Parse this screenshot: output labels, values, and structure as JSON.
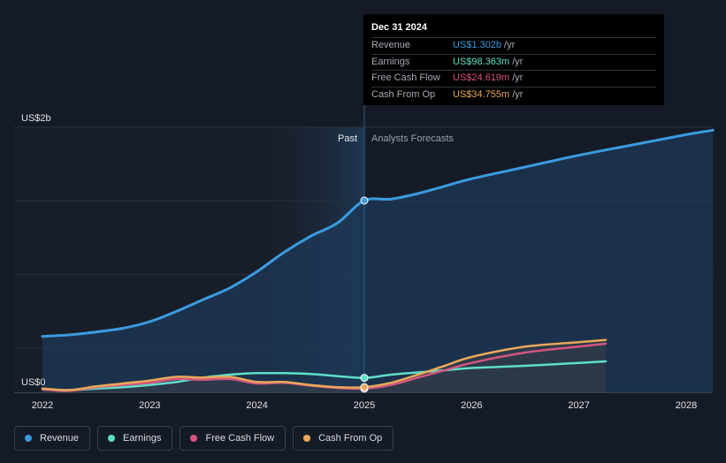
{
  "tooltip": {
    "date": "Dec 31 2024",
    "rows": [
      {
        "label": "Revenue",
        "value": "US$1.302b",
        "unit": "/yr",
        "color": "#3b9be0"
      },
      {
        "label": "Earnings",
        "value": "US$98.363m",
        "unit": "/yr",
        "color": "#5ee0c8"
      },
      {
        "label": "Free Cash Flow",
        "value": "US$24.619m",
        "unit": "/yr",
        "color": "#d4557f"
      },
      {
        "label": "Cash From Op",
        "value": "US$34.755m",
        "unit": "/yr",
        "color": "#e8a85a"
      }
    ]
  },
  "chart_data": {
    "type": "line",
    "title": "",
    "xlabel": "",
    "ylabel": "",
    "y_axis_labels": [
      "US$2b",
      "US$0"
    ],
    "ylim": [
      0,
      1.8
    ],
    "xlim": [
      2021.9,
      2028.25
    ],
    "x_ticks": [
      "2022",
      "2023",
      "2024",
      "2025",
      "2026",
      "2027",
      "2028"
    ],
    "tick_values": [
      2022,
      2023,
      2024,
      2025,
      2026,
      2027,
      2028
    ],
    "divider_x": 2025.0,
    "divider_labels": {
      "past": "Past",
      "forecast": "Analysts Forecasts"
    },
    "series": [
      {
        "name": "Revenue",
        "color": "#3b9be0",
        "points": [
          [
            2022.0,
            0.38
          ],
          [
            2022.25,
            0.39
          ],
          [
            2022.5,
            0.41
          ],
          [
            2022.75,
            0.435
          ],
          [
            2023.0,
            0.48
          ],
          [
            2023.25,
            0.55
          ],
          [
            2023.5,
            0.63
          ],
          [
            2023.75,
            0.71
          ],
          [
            2024.0,
            0.82
          ],
          [
            2024.25,
            0.95
          ],
          [
            2024.5,
            1.06
          ],
          [
            2024.75,
            1.15
          ],
          [
            2025.0,
            1.302
          ],
          [
            2025.25,
            1.312
          ],
          [
            2025.5,
            1.35
          ],
          [
            2025.75,
            1.4
          ],
          [
            2026.0,
            1.45
          ],
          [
            2026.5,
            1.53
          ],
          [
            2027.0,
            1.61
          ],
          [
            2027.5,
            1.68
          ],
          [
            2028.0,
            1.75
          ],
          [
            2028.25,
            1.78
          ]
        ]
      },
      {
        "name": "Earnings",
        "color": "#5ee0c8",
        "points": [
          [
            2022.0,
            0.02
          ],
          [
            2022.25,
            0.015
          ],
          [
            2022.5,
            0.025
          ],
          [
            2022.75,
            0.035
          ],
          [
            2023.0,
            0.05
          ],
          [
            2023.25,
            0.07
          ],
          [
            2023.5,
            0.1
          ],
          [
            2023.75,
            0.12
          ],
          [
            2024.0,
            0.13
          ],
          [
            2024.25,
            0.13
          ],
          [
            2024.5,
            0.125
          ],
          [
            2024.75,
            0.11
          ],
          [
            2025.0,
            0.098
          ],
          [
            2025.25,
            0.12
          ],
          [
            2025.5,
            0.135
          ],
          [
            2025.75,
            0.15
          ],
          [
            2026.0,
            0.165
          ],
          [
            2026.5,
            0.18
          ],
          [
            2027.0,
            0.2
          ],
          [
            2027.25,
            0.21
          ]
        ]
      },
      {
        "name": "Free Cash Flow",
        "color": "#d4557f",
        "points": [
          [
            2022.0,
            0.02
          ],
          [
            2022.25,
            0.01
          ],
          [
            2022.5,
            0.035
          ],
          [
            2022.75,
            0.05
          ],
          [
            2023.0,
            0.065
          ],
          [
            2023.25,
            0.09
          ],
          [
            2023.5,
            0.085
          ],
          [
            2023.75,
            0.09
          ],
          [
            2024.0,
            0.06
          ],
          [
            2024.25,
            0.065
          ],
          [
            2024.5,
            0.045
          ],
          [
            2024.75,
            0.03
          ],
          [
            2025.0,
            0.025
          ],
          [
            2025.25,
            0.05
          ],
          [
            2025.5,
            0.1
          ],
          [
            2025.75,
            0.15
          ],
          [
            2026.0,
            0.2
          ],
          [
            2026.5,
            0.27
          ],
          [
            2027.0,
            0.31
          ],
          [
            2027.25,
            0.33
          ]
        ]
      },
      {
        "name": "Cash From Op",
        "color": "#e8a85a",
        "points": [
          [
            2022.0,
            0.025
          ],
          [
            2022.25,
            0.015
          ],
          [
            2022.5,
            0.04
          ],
          [
            2022.75,
            0.06
          ],
          [
            2023.0,
            0.08
          ],
          [
            2023.25,
            0.105
          ],
          [
            2023.5,
            0.1
          ],
          [
            2023.75,
            0.105
          ],
          [
            2024.0,
            0.07
          ],
          [
            2024.25,
            0.07
          ],
          [
            2024.5,
            0.05
          ],
          [
            2024.75,
            0.035
          ],
          [
            2025.0,
            0.035
          ],
          [
            2025.25,
            0.065
          ],
          [
            2025.5,
            0.12
          ],
          [
            2025.75,
            0.18
          ],
          [
            2026.0,
            0.24
          ],
          [
            2026.5,
            0.31
          ],
          [
            2027.0,
            0.34
          ],
          [
            2027.25,
            0.355
          ]
        ]
      }
    ]
  },
  "legend": [
    {
      "label": "Revenue",
      "color": "#3b9be0"
    },
    {
      "label": "Earnings",
      "color": "#5ee0c8"
    },
    {
      "label": "Free Cash Flow",
      "color": "#d4557f"
    },
    {
      "label": "Cash From Op",
      "color": "#e8a85a"
    }
  ]
}
